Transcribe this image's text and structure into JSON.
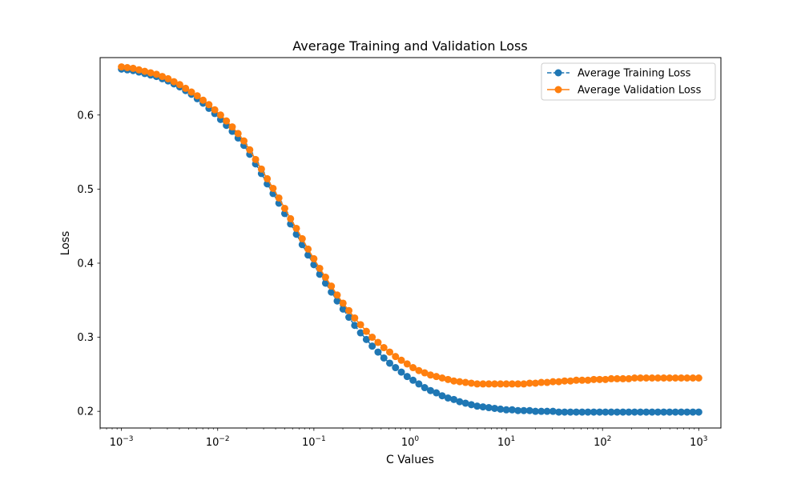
{
  "chart_data": {
    "type": "line",
    "title": "Average Training and Validation Loss",
    "xlabel": "C Values",
    "ylabel": "Loss",
    "xscale": "log",
    "xlim": [
      0.0006,
      1700
    ],
    "ylim": [
      0.1775,
      0.6775
    ],
    "xticks": [
      {
        "value": 0.001,
        "base": "10",
        "exp": "−3"
      },
      {
        "value": 0.01,
        "base": "10",
        "exp": "−2"
      },
      {
        "value": 0.1,
        "base": "10",
        "exp": "−1"
      },
      {
        "value": 1,
        "base": "10",
        "exp": "0"
      },
      {
        "value": 10,
        "base": "10",
        "exp": "1"
      },
      {
        "value": 100,
        "base": "10",
        "exp": "2"
      },
      {
        "value": 1000,
        "base": "10",
        "exp": "3"
      }
    ],
    "yticks": [
      {
        "value": 0.2,
        "label": "0.2"
      },
      {
        "value": 0.3,
        "label": "0.3"
      },
      {
        "value": 0.4,
        "label": "0.4"
      },
      {
        "value": 0.5,
        "label": "0.5"
      },
      {
        "value": 0.6,
        "label": "0.6"
      }
    ],
    "grid": false,
    "legend_position": "top-right",
    "x": {
      "start": 0.001,
      "end": 1000,
      "count": 100,
      "spacing": "log"
    },
    "series": [
      {
        "name": "Average Training Loss",
        "color": "#1f77b4",
        "linestyle": "dashed",
        "marker": "circle",
        "values": [
          0.662,
          0.661,
          0.66,
          0.658,
          0.656,
          0.654,
          0.652,
          0.649,
          0.646,
          0.642,
          0.638,
          0.633,
          0.628,
          0.622,
          0.616,
          0.609,
          0.602,
          0.594,
          0.586,
          0.578,
          0.569,
          0.559,
          0.547,
          0.534,
          0.521,
          0.507,
          0.494,
          0.481,
          0.467,
          0.453,
          0.439,
          0.425,
          0.411,
          0.398,
          0.385,
          0.373,
          0.361,
          0.349,
          0.338,
          0.327,
          0.316,
          0.306,
          0.297,
          0.288,
          0.28,
          0.272,
          0.265,
          0.259,
          0.253,
          0.247,
          0.242,
          0.237,
          0.232,
          0.228,
          0.225,
          0.221,
          0.218,
          0.216,
          0.213,
          0.211,
          0.209,
          0.207,
          0.206,
          0.205,
          0.204,
          0.203,
          0.202,
          0.202,
          0.201,
          0.201,
          0.201,
          0.2,
          0.2,
          0.2,
          0.2,
          0.199,
          0.199,
          0.199,
          0.199,
          0.199,
          0.199,
          0.199,
          0.199,
          0.199,
          0.199,
          0.199,
          0.199,
          0.199,
          0.199,
          0.199,
          0.199,
          0.199,
          0.199,
          0.199,
          0.199,
          0.199,
          0.199,
          0.199,
          0.199,
          0.199
        ]
      },
      {
        "name": "Average Validation Loss",
        "color": "#ff7f0e",
        "linestyle": "solid",
        "marker": "circle",
        "values": [
          0.665,
          0.664,
          0.663,
          0.661,
          0.659,
          0.657,
          0.655,
          0.652,
          0.649,
          0.645,
          0.641,
          0.636,
          0.631,
          0.626,
          0.62,
          0.614,
          0.607,
          0.6,
          0.592,
          0.584,
          0.575,
          0.565,
          0.553,
          0.54,
          0.527,
          0.514,
          0.501,
          0.488,
          0.474,
          0.46,
          0.447,
          0.433,
          0.419,
          0.406,
          0.393,
          0.381,
          0.369,
          0.357,
          0.346,
          0.336,
          0.326,
          0.317,
          0.308,
          0.3,
          0.293,
          0.286,
          0.28,
          0.274,
          0.269,
          0.264,
          0.259,
          0.255,
          0.252,
          0.249,
          0.247,
          0.245,
          0.243,
          0.241,
          0.24,
          0.239,
          0.238,
          0.237,
          0.237,
          0.237,
          0.237,
          0.237,
          0.237,
          0.237,
          0.237,
          0.237,
          0.238,
          0.238,
          0.239,
          0.239,
          0.24,
          0.24,
          0.241,
          0.241,
          0.242,
          0.242,
          0.242,
          0.243,
          0.243,
          0.243,
          0.244,
          0.244,
          0.244,
          0.244,
          0.245,
          0.245,
          0.245,
          0.245,
          0.245,
          0.245,
          0.245,
          0.245,
          0.245,
          0.245,
          0.245,
          0.245
        ]
      }
    ]
  }
}
